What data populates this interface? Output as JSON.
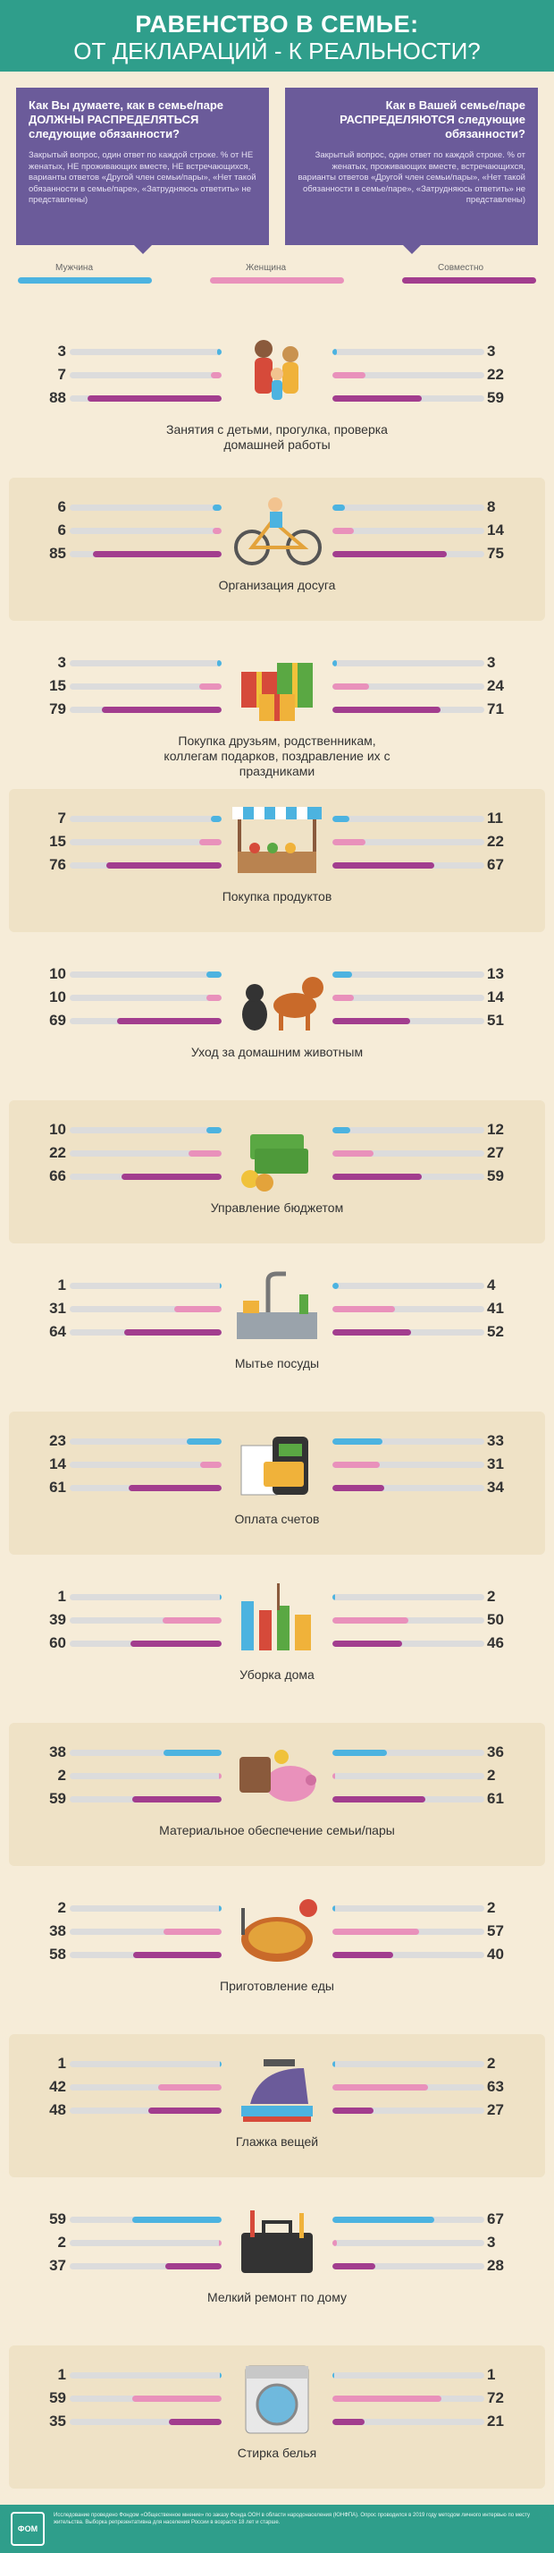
{
  "header": {
    "title_line1": "РАВЕНСТВО В СЕМЬЕ:",
    "title_line2": "ОТ ДЕКЛАРАЦИЙ - К РЕАЛЬНОСТИ?"
  },
  "questions": {
    "left": {
      "title": "Как Вы думаете, как в семье/паре ДОЛЖНЫ РАСПРЕДЕЛЯТЬСЯ следующие обязанности?",
      "note": "Закрытый вопрос, один ответ по каждой строке. % от НЕ женатых, НЕ проживающих вместе, НЕ встречающихся, варианты ответов «Другой член семьи/пары», «Нет такой обязанности в семье/паре», «Затрудняюсь ответить» не представлены)"
    },
    "right": {
      "title": "Как в Вашей семье/паре РАСПРЕДЕЛЯЮТСЯ следующие обязанности?",
      "note": "Закрытый вопрос, один ответ по каждой строке. % от женатых, проживающих вместе, встречающихся, варианты ответов «Другой член семьи/пары», «Нет такой обязанности в семье/паре», «Затрудняюсь ответить» не представлены)"
    }
  },
  "legend": {
    "men": "Мужчина",
    "women": "Женщина",
    "joint": "Совместно"
  },
  "colors": {
    "men": "#4cb3e0",
    "women": "#e991bb",
    "joint": "#a23d8e",
    "header": "#2f9e8b",
    "question_box": "#6b5b9a"
  },
  "sections": [
    {
      "caption": "Занятия с детьми, прогулка, проверка домашней работы",
      "icon": "family-icon",
      "left": [
        3,
        7,
        88
      ],
      "right": [
        3,
        22,
        59
      ]
    },
    {
      "caption": "Организация досуга",
      "icon": "bicycle-icon",
      "left": [
        6,
        6,
        85
      ],
      "right": [
        8,
        14,
        75
      ]
    },
    {
      "caption": "Покупка друзьям, родственникам, коллегам подарков, поздравление их с праздниками",
      "icon": "gift-icon",
      "left": [
        3,
        15,
        79
      ],
      "right": [
        3,
        24,
        71
      ]
    },
    {
      "caption": "Покупка продуктов",
      "icon": "market-stall-icon",
      "left": [
        7,
        15,
        76
      ],
      "right": [
        11,
        22,
        67
      ]
    },
    {
      "caption": "Уход за домашним животным",
      "icon": "pets-icon",
      "left": [
        10,
        10,
        69
      ],
      "right": [
        13,
        14,
        51
      ]
    },
    {
      "caption": "Управление бюджетом",
      "icon": "money-icon",
      "left": [
        10,
        22,
        66
      ],
      "right": [
        12,
        27,
        59
      ]
    },
    {
      "caption": "Мытье посуды",
      "icon": "sink-icon",
      "left": [
        1,
        31,
        64
      ],
      "right": [
        4,
        41,
        52
      ]
    },
    {
      "caption": "Оплата счетов",
      "icon": "card-terminal-icon",
      "left": [
        23,
        14,
        61
      ],
      "right": [
        33,
        31,
        34
      ]
    },
    {
      "caption": "Уборка дома",
      "icon": "cleaning-supplies-icon",
      "left": [
        1,
        39,
        60
      ],
      "right": [
        2,
        50,
        46
      ]
    },
    {
      "caption": "Материальное обеспечение семьи/пары",
      "icon": "piggy-bank-icon",
      "left": [
        38,
        2,
        59
      ],
      "right": [
        36,
        2,
        61
      ]
    },
    {
      "caption": "Приготовление еды",
      "icon": "cooking-icon",
      "left": [
        2,
        38,
        58
      ],
      "right": [
        2,
        57,
        40
      ]
    },
    {
      "caption": "Глажка вещей",
      "icon": "iron-icon",
      "left": [
        1,
        42,
        48
      ],
      "right": [
        2,
        63,
        27
      ]
    },
    {
      "caption": "Мелкий ремонт по дому",
      "icon": "toolbox-icon",
      "left": [
        59,
        2,
        37
      ],
      "right": [
        67,
        3,
        28
      ]
    },
    {
      "caption": "Стирка белья",
      "icon": "washing-machine-icon",
      "left": [
        1,
        59,
        35
      ],
      "right": [
        1,
        72,
        21
      ]
    }
  ],
  "footer": {
    "text": "Исследование проведено Фондом «Общественное мнение» по заказу Фонда ООН в области народонаселения (ЮНФПА). Опрос проводился в 2019 году методом личного интервью по месту жительства. Выборка репрезентативна для населения России в возрасте 18 лет и старше."
  },
  "logo": {
    "text": "ФОМ"
  }
}
